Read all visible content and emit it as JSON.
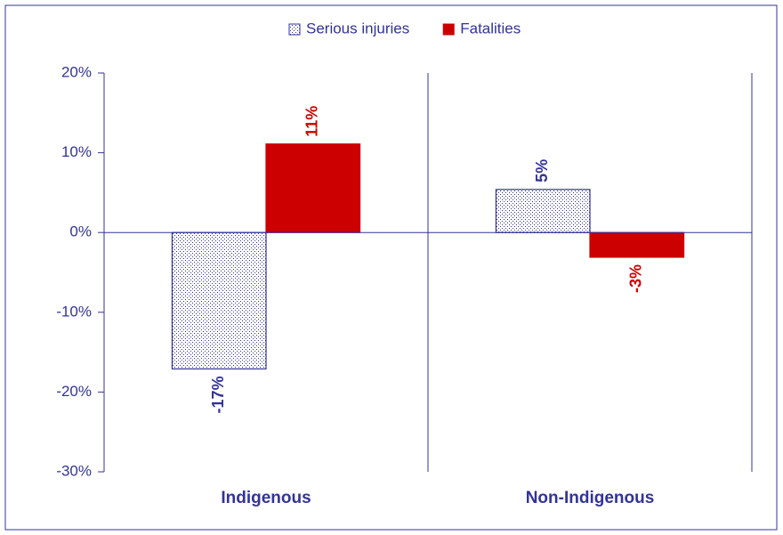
{
  "chart_data": {
    "type": "bar",
    "categories": [
      "Indigenous",
      "Non-Indigenous"
    ],
    "series": [
      {
        "name": "Serious injuries",
        "color": "#333399",
        "values": [
          -17.1,
          5.4
        ],
        "value_labels": [
          "-17%",
          "5%"
        ]
      },
      {
        "name": "Fatalities",
        "color": "#cc0000",
        "values": [
          11.1,
          -3.1
        ],
        "value_labels": [
          "11%",
          "-3%"
        ]
      }
    ],
    "ylim": [
      -30,
      20
    ],
    "yticks": [
      {
        "value": -30,
        "label": "-30%"
      },
      {
        "value": -20,
        "label": "-20%"
      },
      {
        "value": -10,
        "label": "-10%"
      },
      {
        "value": 0,
        "label": "0%"
      },
      {
        "value": 10,
        "label": "10%"
      },
      {
        "value": 20,
        "label": "20%"
      }
    ],
    "legend": "top"
  }
}
